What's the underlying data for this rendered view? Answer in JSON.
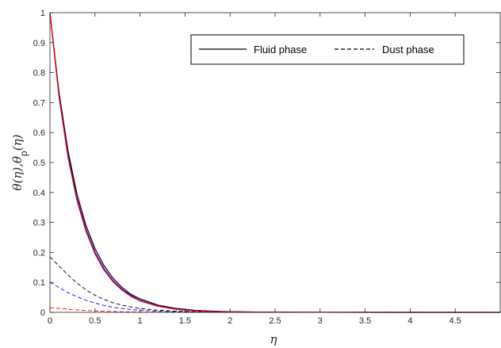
{
  "chart_data": {
    "type": "line",
    "xlabel": "η",
    "ylabel": "θ(η),θp(η)",
    "ylabel_parts": {
      "theta": "θ(η),θ",
      "sub": "p",
      "tail": "(η)"
    },
    "xlim": [
      0,
      5
    ],
    "ylim": [
      0,
      1
    ],
    "x_ticks": [
      "0",
      "0.5",
      "1",
      "1.5",
      "2",
      "2.5",
      "3",
      "3.5",
      "4",
      "4.5"
    ],
    "y_ticks": [
      "0",
      "0.1",
      "0.2",
      "0.3",
      "0.4",
      "0.5",
      "0.6",
      "0.7",
      "0.8",
      "0.9",
      "1"
    ],
    "grid": false,
    "legend": {
      "position": "top-right",
      "entries": [
        {
          "label": "Fluid phase",
          "style": "solid"
        },
        {
          "label": "Dust phase",
          "style": "dashed"
        }
      ]
    },
    "series": [
      {
        "style": "solid",
        "color": "#000000",
        "x": [
          0,
          0.1,
          0.2,
          0.3,
          0.4,
          0.5,
          0.6,
          0.7,
          0.8,
          0.9,
          1.0,
          1.2,
          1.4,
          1.6,
          1.8,
          2.0,
          2.5,
          3,
          4,
          5
        ],
        "y": [
          1.0,
          0.735,
          0.54,
          0.395,
          0.29,
          0.213,
          0.156,
          0.114,
          0.083,
          0.06,
          0.045,
          0.024,
          0.013,
          0.007,
          0.004,
          0.002,
          0.0005,
          0.0001,
          0,
          0
        ]
      },
      {
        "style": "solid",
        "color": "#0000ff",
        "x": [
          0,
          0.1,
          0.2,
          0.3,
          0.4,
          0.5,
          0.6,
          0.7,
          0.8,
          0.9,
          1.0,
          1.2,
          1.4,
          1.6,
          1.8,
          2.0,
          2.5,
          3,
          4,
          5
        ],
        "y": [
          1.0,
          0.725,
          0.525,
          0.38,
          0.277,
          0.201,
          0.146,
          0.106,
          0.077,
          0.056,
          0.04,
          0.021,
          0.011,
          0.006,
          0.003,
          0.0017,
          0.0004,
          0.0001,
          0,
          0
        ]
      },
      {
        "style": "solid",
        "color": "#ff0000",
        "x": [
          0,
          0.1,
          0.2,
          0.3,
          0.4,
          0.5,
          0.6,
          0.7,
          0.8,
          0.9,
          1.0,
          1.2,
          1.4,
          1.6,
          1.8,
          2.0,
          2.5,
          3,
          4,
          5
        ],
        "y": [
          1.0,
          0.72,
          0.518,
          0.373,
          0.27,
          0.195,
          0.141,
          0.102,
          0.074,
          0.053,
          0.038,
          0.02,
          0.01,
          0.005,
          0.003,
          0.0015,
          0.0003,
          0.0001,
          0,
          0
        ]
      },
      {
        "style": "dashed",
        "color": "#000000",
        "x": [
          0,
          0.1,
          0.2,
          0.3,
          0.4,
          0.5,
          0.6,
          0.7,
          0.8,
          0.9,
          1.0,
          1.2,
          1.4,
          1.6,
          1.8,
          2.0,
          2.5,
          3,
          4,
          5
        ],
        "y": [
          0.185,
          0.155,
          0.125,
          0.098,
          0.075,
          0.057,
          0.043,
          0.032,
          0.024,
          0.018,
          0.013,
          0.007,
          0.004,
          0.002,
          0.001,
          0.0006,
          0.0001,
          0,
          0,
          0
        ]
      },
      {
        "style": "dashed",
        "color": "#0000ff",
        "x": [
          0,
          0.1,
          0.2,
          0.3,
          0.4,
          0.5,
          0.6,
          0.7,
          0.8,
          0.9,
          1.0,
          1.2,
          1.4,
          1.6,
          1.8,
          2.0,
          2.5,
          3,
          4,
          5
        ],
        "y": [
          0.1,
          0.083,
          0.066,
          0.052,
          0.04,
          0.031,
          0.023,
          0.017,
          0.013,
          0.0095,
          0.007,
          0.004,
          0.002,
          0.001,
          0.0006,
          0.0003,
          0.0001,
          0,
          0,
          0
        ]
      },
      {
        "style": "dashed",
        "color": "#ff0000",
        "x": [
          0,
          0.1,
          0.2,
          0.3,
          0.4,
          0.5,
          0.6,
          0.7,
          0.8,
          0.9,
          1.0,
          1.2,
          1.4,
          1.6,
          1.8,
          2.0,
          2.5,
          3,
          4,
          5
        ],
        "y": [
          0.016,
          0.013,
          0.0105,
          0.008,
          0.0062,
          0.0047,
          0.0035,
          0.0026,
          0.002,
          0.0015,
          0.0011,
          0.0006,
          0.0003,
          0.0002,
          0.0001,
          0.0001,
          0,
          0,
          0,
          0
        ]
      }
    ]
  }
}
